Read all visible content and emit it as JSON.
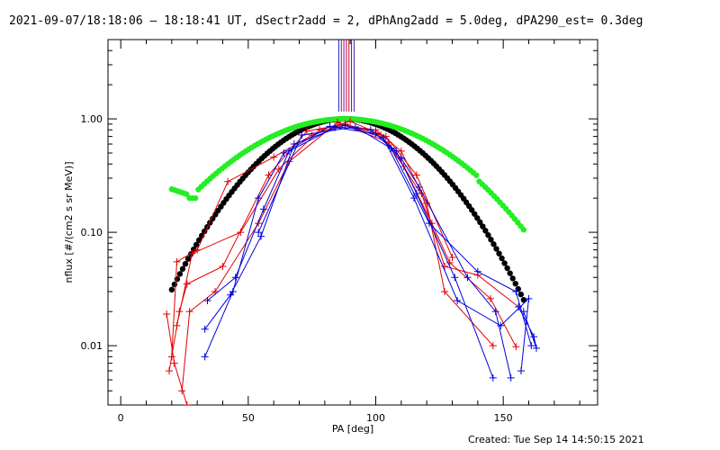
{
  "title": "2021-09-07/18:18:06 – 18:18:41 UT, dSectr2add = 2, dPhAng2add = 5.0deg, dPA290_est=  0.3deg",
  "footer": "Created: Tue Sep 14 14:50:15 2021",
  "colors": {
    "red": "#e00000",
    "blue": "#0000dd",
    "black": "#000000",
    "green": "#22ee22",
    "markers": [
      "#2020c0",
      "#5a1aa8",
      "#8a0a80",
      "#b00040",
      "#c00020"
    ]
  },
  "chart_data": {
    "type": "scatter",
    "xlabel": "PA [deg]",
    "ylabel": "nflux [#/(cm2 s sr MeV)]",
    "xlim": [
      -5,
      187
    ],
    "ylim": [
      0.003,
      5.0
    ],
    "yscale": "log",
    "x_ticks": [
      0,
      50,
      100,
      150
    ],
    "x_tick_labels": [
      "0",
      "50",
      "100",
      "150"
    ],
    "y_ticks": [
      0.01,
      0.1,
      1.0
    ],
    "y_tick_labels": [
      "0.01",
      "0.10",
      "1.00"
    ],
    "grid": false,
    "marker_lines_x": [
      85.5,
      86.5,
      87.5,
      88.5,
      89.5,
      90.5,
      91.5
    ],
    "series": [
      {
        "color": "red",
        "style": "line+plus",
        "traces": [
          [
            [
              20,
              0.008
            ],
            [
              22,
              0.055
            ],
            [
              30,
              0.07
            ],
            [
              42,
              0.28
            ],
            [
              60,
              0.46
            ],
            [
              75,
              0.72
            ],
            [
              86,
              0.88
            ],
            [
              100,
              0.8
            ],
            [
              110,
              0.52
            ],
            [
              118,
              0.22
            ],
            [
              127,
              0.05
            ],
            [
              140,
              0.042
            ],
            [
              156,
              0.022
            ]
          ],
          [
            [
              19,
              0.006
            ],
            [
              23,
              0.02
            ],
            [
              26,
              0.035
            ],
            [
              40,
              0.05
            ],
            [
              58,
              0.32
            ],
            [
              73,
              0.78
            ],
            [
              88,
              0.9
            ],
            [
              102,
              0.72
            ],
            [
              111,
              0.38
            ],
            [
              122,
              0.12
            ],
            [
              129,
              0.054
            ],
            [
              145,
              0.026
            ],
            [
              155,
              0.0098
            ]
          ],
          [
            [
              24,
              0.004
            ],
            [
              27,
              0.02
            ],
            [
              37,
              0.03
            ],
            [
              54,
              0.12
            ],
            [
              66,
              0.42
            ],
            [
              85,
              0.93
            ],
            [
              105,
              0.62
            ],
            [
              120,
              0.18
            ],
            [
              127,
              0.03
            ],
            [
              146,
              0.01
            ]
          ],
          [
            [
              18,
              0.019
            ],
            [
              21,
              0.007
            ],
            [
              26,
              0.003
            ]
          ],
          [
            [
              22,
              0.015
            ],
            [
              28,
              0.065
            ],
            [
              47,
              0.1
            ],
            [
              62,
              0.36
            ],
            [
              78,
              0.8
            ],
            [
              90,
              0.95
            ],
            [
              104,
              0.7
            ],
            [
              116,
              0.32
            ],
            [
              130,
              0.06
            ]
          ]
        ]
      },
      {
        "color": "blue",
        "style": "line+plus",
        "traces": [
          [
            [
              33,
              0.008
            ],
            [
              44,
              0.03
            ],
            [
              54,
              0.2
            ],
            [
              64,
              0.5
            ],
            [
              82,
              0.86
            ],
            [
              98,
              0.8
            ],
            [
              108,
              0.52
            ],
            [
              116,
              0.22
            ],
            [
              131,
              0.04
            ],
            [
              146,
              0.0052
            ]
          ],
          [
            [
              34,
              0.025
            ],
            [
              45,
              0.04
            ],
            [
              56,
              0.16
            ],
            [
              66,
              0.52
            ],
            [
              84,
              0.84
            ],
            [
              100,
              0.74
            ],
            [
              110,
              0.45
            ],
            [
              117,
              0.25
            ],
            [
              136,
              0.04
            ],
            [
              147,
              0.02
            ],
            [
              153,
              0.0052
            ]
          ],
          [
            [
              33,
              0.014
            ],
            [
              43,
              0.028
            ],
            [
              55,
              0.092
            ],
            [
              68,
              0.6
            ],
            [
              88,
              0.88
            ],
            [
              103,
              0.68
            ],
            [
              115,
              0.2
            ],
            [
              132,
              0.025
            ],
            [
              149,
              0.015
            ],
            [
              160,
              0.026
            ],
            [
              157,
              0.006
            ]
          ],
          [
            [
              54,
              0.1
            ],
            [
              71,
              0.72
            ],
            [
              92,
              0.85
            ],
            [
              106,
              0.55
            ],
            [
              121,
              0.12
            ],
            [
              140,
              0.045
            ],
            [
              155,
              0.03
            ],
            [
              161,
              0.01
            ]
          ],
          [
            [
              156,
              0.022
            ],
            [
              162,
              0.012
            ],
            [
              163,
              0.0095
            ],
            [
              158,
              0.02
            ]
          ]
        ]
      }
    ],
    "black_dots_model": {
      "peak": 1.0,
      "center": 88,
      "width_sigma": 30,
      "x_range": [
        20,
        158
      ],
      "n": 130
    },
    "green_dots_model": {
      "x_range": [
        20,
        158
      ],
      "n": 120
    }
  }
}
